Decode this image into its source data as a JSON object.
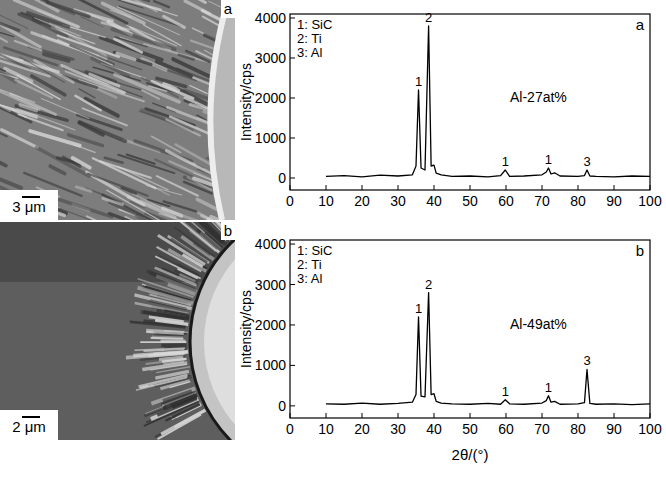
{
  "micrographs": [
    {
      "label": "a",
      "scale_bar": "3 μm"
    },
    {
      "label": "b",
      "scale_bar": "2 μm"
    }
  ],
  "chart_data": [
    {
      "type": "line",
      "panel_label": "a",
      "ylabel": "Intensity/cps",
      "key": [
        "1: SiC",
        "2: Ti",
        "3: Al"
      ],
      "sample_label": {
        "text": "Al-27at%",
        "x": 69,
        "y": 1900
      },
      "xlim": [
        0,
        100
      ],
      "xticks": [
        0,
        10,
        20,
        30,
        40,
        50,
        60,
        70,
        80,
        90,
        100
      ],
      "ylim": [
        -300,
        4100
      ],
      "yticks": [
        0,
        1000,
        2000,
        3000,
        4000
      ],
      "series": [
        {
          "color": "#000000",
          "x": [
            10,
            15,
            20,
            25,
            30,
            34,
            35,
            35.7,
            36.4,
            37.5,
            38.5,
            39.2,
            40,
            40.6,
            42,
            45,
            50,
            55,
            58.5,
            59.8,
            61,
            65,
            70,
            71.2,
            71.8,
            72.5,
            73.5,
            75,
            80,
            81.8,
            82.5,
            83.3,
            85,
            90,
            95,
            100
          ],
          "values": [
            40,
            60,
            30,
            70,
            50,
            80,
            300,
            2200,
            250,
            200,
            3800,
            300,
            320,
            120,
            80,
            40,
            50,
            30,
            60,
            200,
            40,
            50,
            80,
            150,
            250,
            100,
            130,
            50,
            40,
            60,
            200,
            50,
            40,
            30,
            50,
            40
          ]
        }
      ],
      "peak_labels": [
        {
          "text": "1",
          "x": 35.7,
          "y": 2200
        },
        {
          "text": "2",
          "x": 38.5,
          "y": 3800
        },
        {
          "text": "1",
          "x": 59.8,
          "y": 200
        },
        {
          "text": "1",
          "x": 71.8,
          "y": 250
        },
        {
          "text": "3",
          "x": 82.5,
          "y": 200
        }
      ]
    },
    {
      "type": "line",
      "panel_label": "b",
      "ylabel": "Intensity/cps",
      "xlabel": "2θ/(°)",
      "key": [
        "1: SiC",
        "2: Ti",
        "3: Al"
      ],
      "sample_label": {
        "text": "Al-49at%",
        "x": 69,
        "y": 1900
      },
      "xlim": [
        0,
        100
      ],
      "xticks": [
        0,
        10,
        20,
        30,
        40,
        50,
        60,
        70,
        80,
        90,
        100
      ],
      "ylim": [
        -300,
        4100
      ],
      "yticks": [
        0,
        1000,
        2000,
        3000,
        4000
      ],
      "series": [
        {
          "color": "#000000",
          "x": [
            10,
            15,
            20,
            25,
            30,
            34,
            35,
            35.7,
            36.4,
            37.5,
            38.5,
            39.2,
            40,
            40.6,
            42,
            45,
            50,
            55,
            58.5,
            59.8,
            61,
            65,
            70,
            71.2,
            71.8,
            72.5,
            73.5,
            75,
            80,
            81.8,
            82.5,
            83.3,
            85,
            90,
            95,
            100
          ],
          "values": [
            50,
            40,
            70,
            40,
            60,
            90,
            280,
            2200,
            240,
            220,
            2800,
            280,
            300,
            110,
            70,
            50,
            40,
            60,
            40,
            150,
            50,
            40,
            70,
            130,
            250,
            90,
            110,
            40,
            50,
            80,
            900,
            60,
            40,
            50,
            30,
            50
          ]
        }
      ],
      "peak_labels": [
        {
          "text": "1",
          "x": 35.7,
          "y": 2200
        },
        {
          "text": "2",
          "x": 38.5,
          "y": 2800
        },
        {
          "text": "1",
          "x": 59.8,
          "y": 150
        },
        {
          "text": "1",
          "x": 71.8,
          "y": 250
        },
        {
          "text": "3",
          "x": 82.5,
          "y": 900
        }
      ]
    }
  ]
}
